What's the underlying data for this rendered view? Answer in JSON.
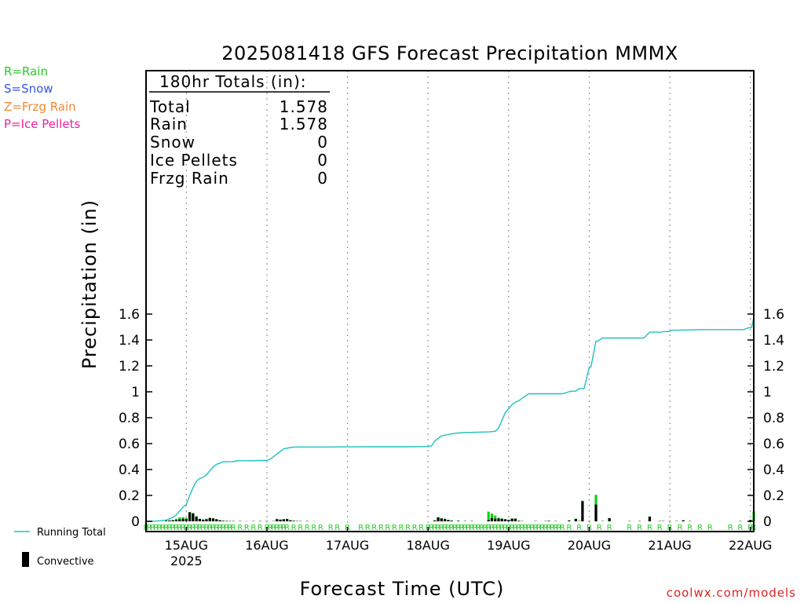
{
  "chart_data": {
    "type": "bar",
    "title": "2025081418 GFS Forecast Precipitation MMMX",
    "xlabel": "Forecast Time (UTC)",
    "ylabel": "Precipitation (in)",
    "ylim": [
      0,
      1.75
    ],
    "yticks": [
      0,
      0.2,
      0.4,
      0.6,
      0.8,
      1,
      1.2,
      1.4,
      1.6
    ],
    "ytick_labels": [
      "0",
      "0.2",
      "0.4",
      "0.6",
      "0.8",
      "1",
      "1.2",
      "1.4",
      "1.6"
    ],
    "xlim_hours": [
      -6,
      175
    ],
    "x_ticks": [
      {
        "label": "15AUG",
        "hour": 6,
        "sub": "2025"
      },
      {
        "label": "16AUG",
        "hour": 30,
        "sub": ""
      },
      {
        "label": "17AUG",
        "hour": 54,
        "sub": ""
      },
      {
        "label": "18AUG",
        "hour": 78,
        "sub": ""
      },
      {
        "label": "19AUG",
        "hour": 102,
        "sub": ""
      },
      {
        "label": "20AUG",
        "hour": 126,
        "sub": ""
      },
      {
        "label": "21AUG",
        "hour": 150,
        "sub": ""
      },
      {
        "label": "22AUG",
        "hour": 174,
        "sub": ""
      }
    ],
    "grid": "vertical-dotted",
    "totals_box": {
      "header": "180hr Totals (in):",
      "rows": [
        {
          "label": "Total",
          "value": "1.578"
        },
        {
          "label": "Rain",
          "value": "1.578"
        },
        {
          "label": "Snow",
          "value": "0"
        },
        {
          "label": "Ice Pellets",
          "value": "0"
        },
        {
          "label": "Frzg Rain",
          "value": "0"
        }
      ]
    },
    "precip_legend": [
      {
        "text": "R=Rain",
        "color": "#22cc22"
      },
      {
        "text": "S=Snow",
        "color": "#3355ee"
      },
      {
        "text": "Z=Frzg Rain",
        "color": "#ee8833"
      },
      {
        "text": "P=Ice Pellets",
        "color": "#ee2299"
      }
    ],
    "series_legend": [
      {
        "name": "Running Total",
        "kind": "line",
        "color": "#20c0c0"
      },
      {
        "name": "Convective",
        "kind": "bar",
        "color": "#000000"
      }
    ],
    "running_total": {
      "hours": [
        -6,
        -3,
        0,
        1,
        2,
        3,
        4,
        5,
        6,
        7,
        8,
        9,
        10,
        11,
        12,
        13,
        14,
        15,
        16,
        17,
        18,
        19,
        20,
        21,
        22,
        24,
        26,
        28,
        30,
        31,
        32,
        33,
        34,
        35,
        36,
        37,
        38,
        39,
        40,
        42,
        44,
        48,
        54,
        60,
        66,
        72,
        77,
        78,
        79,
        80,
        81,
        82,
        84,
        85,
        88,
        92,
        96,
        97,
        98,
        99,
        100,
        101,
        102,
        103,
        104,
        105,
        106,
        108,
        114,
        117,
        118,
        120,
        120.5,
        122,
        123,
        124,
        124.5,
        126,
        126.5,
        128,
        128.5,
        130,
        132,
        138,
        141,
        142,
        142.5,
        144,
        147,
        147.5,
        148,
        150,
        150.5,
        152,
        160,
        168,
        168.5,
        170,
        171,
        172,
        173,
        174,
        174.3,
        174.6,
        175
      ],
      "values": [
        0,
        0.002,
        0.01,
        0.02,
        0.03,
        0.05,
        0.08,
        0.11,
        0.13,
        0.2,
        0.26,
        0.31,
        0.33,
        0.34,
        0.36,
        0.39,
        0.42,
        0.44,
        0.45,
        0.46,
        0.46,
        0.46,
        0.46,
        0.468,
        0.468,
        0.468,
        0.468,
        0.47,
        0.47,
        0.48,
        0.5,
        0.52,
        0.54,
        0.56,
        0.565,
        0.57,
        0.574,
        0.574,
        0.574,
        0.574,
        0.574,
        0.574,
        0.575,
        0.576,
        0.576,
        0.576,
        0.577,
        0.577,
        0.582,
        0.62,
        0.64,
        0.66,
        0.67,
        0.675,
        0.685,
        0.687,
        0.69,
        0.693,
        0.695,
        0.72,
        0.78,
        0.84,
        0.87,
        0.9,
        0.92,
        0.93,
        0.95,
        0.985,
        0.985,
        0.985,
        0.985,
        1.0,
        1.005,
        1.005,
        1.025,
        1.025,
        1.025,
        1.19,
        1.19,
        1.39,
        1.39,
        1.415,
        1.415,
        1.415,
        1.415,
        1.415,
        1.42,
        1.46,
        1.46,
        1.46,
        1.465,
        1.465,
        1.475,
        1.475,
        1.48,
        1.48,
        1.48,
        1.48,
        1.48,
        1.48,
        1.49,
        1.495,
        1.495,
        1.52,
        1.578
      ]
    },
    "bars": {
      "hours": [
        0,
        1,
        2,
        3,
        4,
        5,
        6,
        7,
        8,
        9,
        10,
        11,
        12,
        13,
        14,
        15,
        16,
        17,
        18,
        19,
        20,
        22,
        24,
        26,
        28,
        30,
        32,
        33,
        34,
        35,
        36,
        37,
        38,
        39,
        40,
        42,
        44,
        80,
        81,
        82,
        83,
        84,
        85,
        87,
        89,
        91,
        96,
        97,
        98,
        99,
        100,
        101,
        102,
        103,
        104,
        105,
        106,
        110,
        113,
        114,
        116,
        120,
        122,
        123,
        124,
        126,
        128,
        130,
        132,
        138,
        141,
        144,
        147,
        148,
        150,
        152,
        154,
        156,
        171,
        174,
        175
      ],
      "total": [
        0.005,
        0.008,
        0.01,
        0.02,
        0.03,
        0.032,
        0.028,
        0.072,
        0.065,
        0.04,
        0.02,
        0.015,
        0.02,
        0.028,
        0.025,
        0.018,
        0.01,
        0.005,
        0.004,
        0.003,
        0.002,
        0.002,
        0.001,
        0.002,
        0.002,
        0.002,
        0.002,
        0.02,
        0.015,
        0.018,
        0.02,
        0.01,
        0.005,
        0.003,
        0.002,
        0.002,
        0.001,
        0.008,
        0.033,
        0.025,
        0.02,
        0.012,
        0.007,
        0.005,
        0.003,
        0.002,
        0.075,
        0.06,
        0.045,
        0.028,
        0.022,
        0.018,
        0.012,
        0.022,
        0.022,
        0.005,
        0.002,
        0.002,
        0.002,
        0.004,
        0.002,
        0.008,
        0.02,
        0.002,
        0.16,
        0.002,
        0.205,
        0.002,
        0.025,
        0.002,
        0.002,
        0.038,
        0.002,
        0.002,
        0.002,
        0.002,
        0.008,
        0.002,
        0.002,
        0.012,
        0.08
      ],
      "convective": [
        0.004,
        0.006,
        0.008,
        0.01,
        0.015,
        0.02,
        0.018,
        0.07,
        0.06,
        0.035,
        0.018,
        0.012,
        0.015,
        0.025,
        0.022,
        0.015,
        0.008,
        0.004,
        0.003,
        0.002,
        0.002,
        0.002,
        0.001,
        0.002,
        0.002,
        0.002,
        0.002,
        0.016,
        0.012,
        0.015,
        0.017,
        0.008,
        0.004,
        0.002,
        0.002,
        0.002,
        0.001,
        0.006,
        0.03,
        0.022,
        0.017,
        0.01,
        0.005,
        0.004,
        0.002,
        0.002,
        0.01,
        0.025,
        0.02,
        0.022,
        0.02,
        0.015,
        0.01,
        0.02,
        0.02,
        0.004,
        0.002,
        0.002,
        0.002,
        0.004,
        0.002,
        0.006,
        0.018,
        0.002,
        0.155,
        0.002,
        0.13,
        0.002,
        0.025,
        0.002,
        0.002,
        0.035,
        0.002,
        0.002,
        0.002,
        0.002,
        0.008,
        0.002,
        0.002,
        0.01,
        0.0
      ]
    },
    "ptype_markers": {
      "label": "R",
      "hours": [
        -6,
        -5,
        -4,
        -3,
        -2,
        -1,
        0,
        1,
        2,
        3,
        4,
        5,
        6,
        7,
        8,
        9,
        10,
        11,
        12,
        13,
        14,
        15,
        16,
        17,
        18,
        19,
        20,
        22,
        24,
        26,
        28,
        30,
        31,
        32,
        33,
        34,
        35,
        36,
        38,
        40,
        42,
        44,
        46,
        49,
        51,
        54,
        58,
        60,
        62,
        64,
        66,
        68,
        70,
        72,
        74,
        76,
        78,
        79,
        80,
        81,
        82,
        83,
        84,
        85,
        86,
        87,
        88,
        89,
        90,
        91,
        92,
        93,
        94,
        95,
        96,
        97,
        98,
        99,
        100,
        101,
        102,
        103,
        104,
        105,
        106,
        107,
        108,
        109,
        110,
        111,
        112,
        113,
        114,
        115,
        116,
        117,
        118,
        120,
        123,
        126,
        129,
        132,
        138,
        141,
        144,
        147,
        150,
        153,
        156,
        159,
        162,
        168,
        171,
        174,
        175
      ]
    }
  },
  "footer": {
    "brand": "coolwx.com/models"
  }
}
